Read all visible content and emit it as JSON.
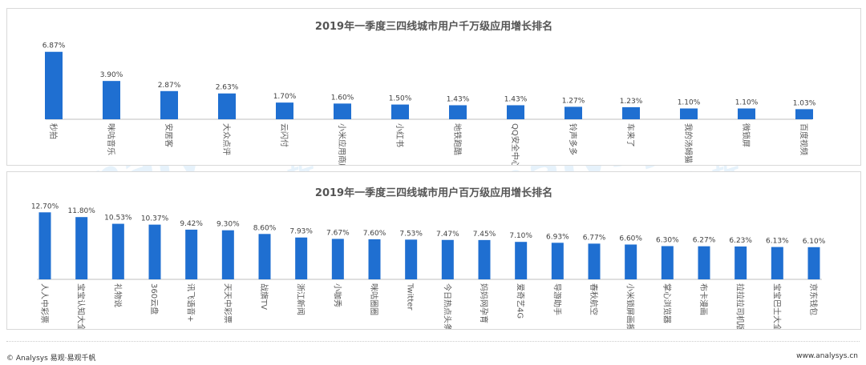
{
  "chart_data": [
    {
      "type": "bar",
      "title": "2019年一季度三四线城市用户千万级应用增长排名",
      "categories": [
        "秒拍",
        "咪咕音乐",
        "安居客",
        "大众点评",
        "云闪付",
        "小米应用商店",
        "小红书",
        "地铁跑酷",
        "QQ安全中心",
        "铃声多多",
        "车来了",
        "我的汤姆猫",
        "微锁屏",
        "百度视频"
      ],
      "labels": [
        "6.87%",
        "3.90%",
        "2.87%",
        "2.63%",
        "1.70%",
        "1.60%",
        "1.50%",
        "1.43%",
        "1.43%",
        "1.27%",
        "1.23%",
        "1.10%",
        "1.10%",
        "1.03%"
      ],
      "values": [
        6.87,
        3.9,
        2.87,
        2.63,
        1.7,
        1.6,
        1.5,
        1.43,
        1.43,
        1.27,
        1.23,
        1.1,
        1.1,
        1.03
      ],
      "ylim": [
        0,
        7.5
      ],
      "grid": false,
      "color": "#1f6fd1"
    },
    {
      "type": "bar",
      "title": "2019年一季度三四线城市用户百万级应用增长排名",
      "categories": [
        "人人中彩票",
        "宝宝认知大全",
        "礼物说",
        "360云盘",
        "讯飞语音+",
        "天天中彩票",
        "战旗TV",
        "浙江新闻",
        "小咖秀",
        "咪咕圈圈",
        "Twitter",
        "今日热点头条",
        "妈妈网孕育",
        "爱奇艺4G",
        "导游助手",
        "春秋航空",
        "小米锁屏画报",
        "掌心浏览器",
        "布卡漫画",
        "拉拉拉司机版",
        "宝宝巴士大全",
        "京东钱包"
      ],
      "labels": [
        "12.70%",
        "11.80%",
        "10.53%",
        "10.37%",
        "9.42%",
        "9.30%",
        "8.60%",
        "7.93%",
        "7.67%",
        "7.60%",
        "7.53%",
        "7.47%",
        "7.45%",
        "7.10%",
        "6.93%",
        "6.77%",
        "6.60%",
        "6.30%",
        "6.27%",
        "6.23%",
        "6.13%",
        "6.10%"
      ],
      "values": [
        12.7,
        11.8,
        10.53,
        10.37,
        9.42,
        9.3,
        8.6,
        7.93,
        7.67,
        7.6,
        7.53,
        7.47,
        7.45,
        7.1,
        6.93,
        6.77,
        6.6,
        6.3,
        6.27,
        6.23,
        6.13,
        6.1
      ],
      "ylim": [
        0,
        13.5
      ],
      "grid": false,
      "color": "#1f6fd1"
    }
  ],
  "watermark": {
    "brand_cn": "易观",
    "brand_en": "analysys",
    "tagline": "你要的数据分析"
  },
  "footer": {
    "left": "© Analysys 易观·易观千帆",
    "right": "www.analysys.cn"
  }
}
